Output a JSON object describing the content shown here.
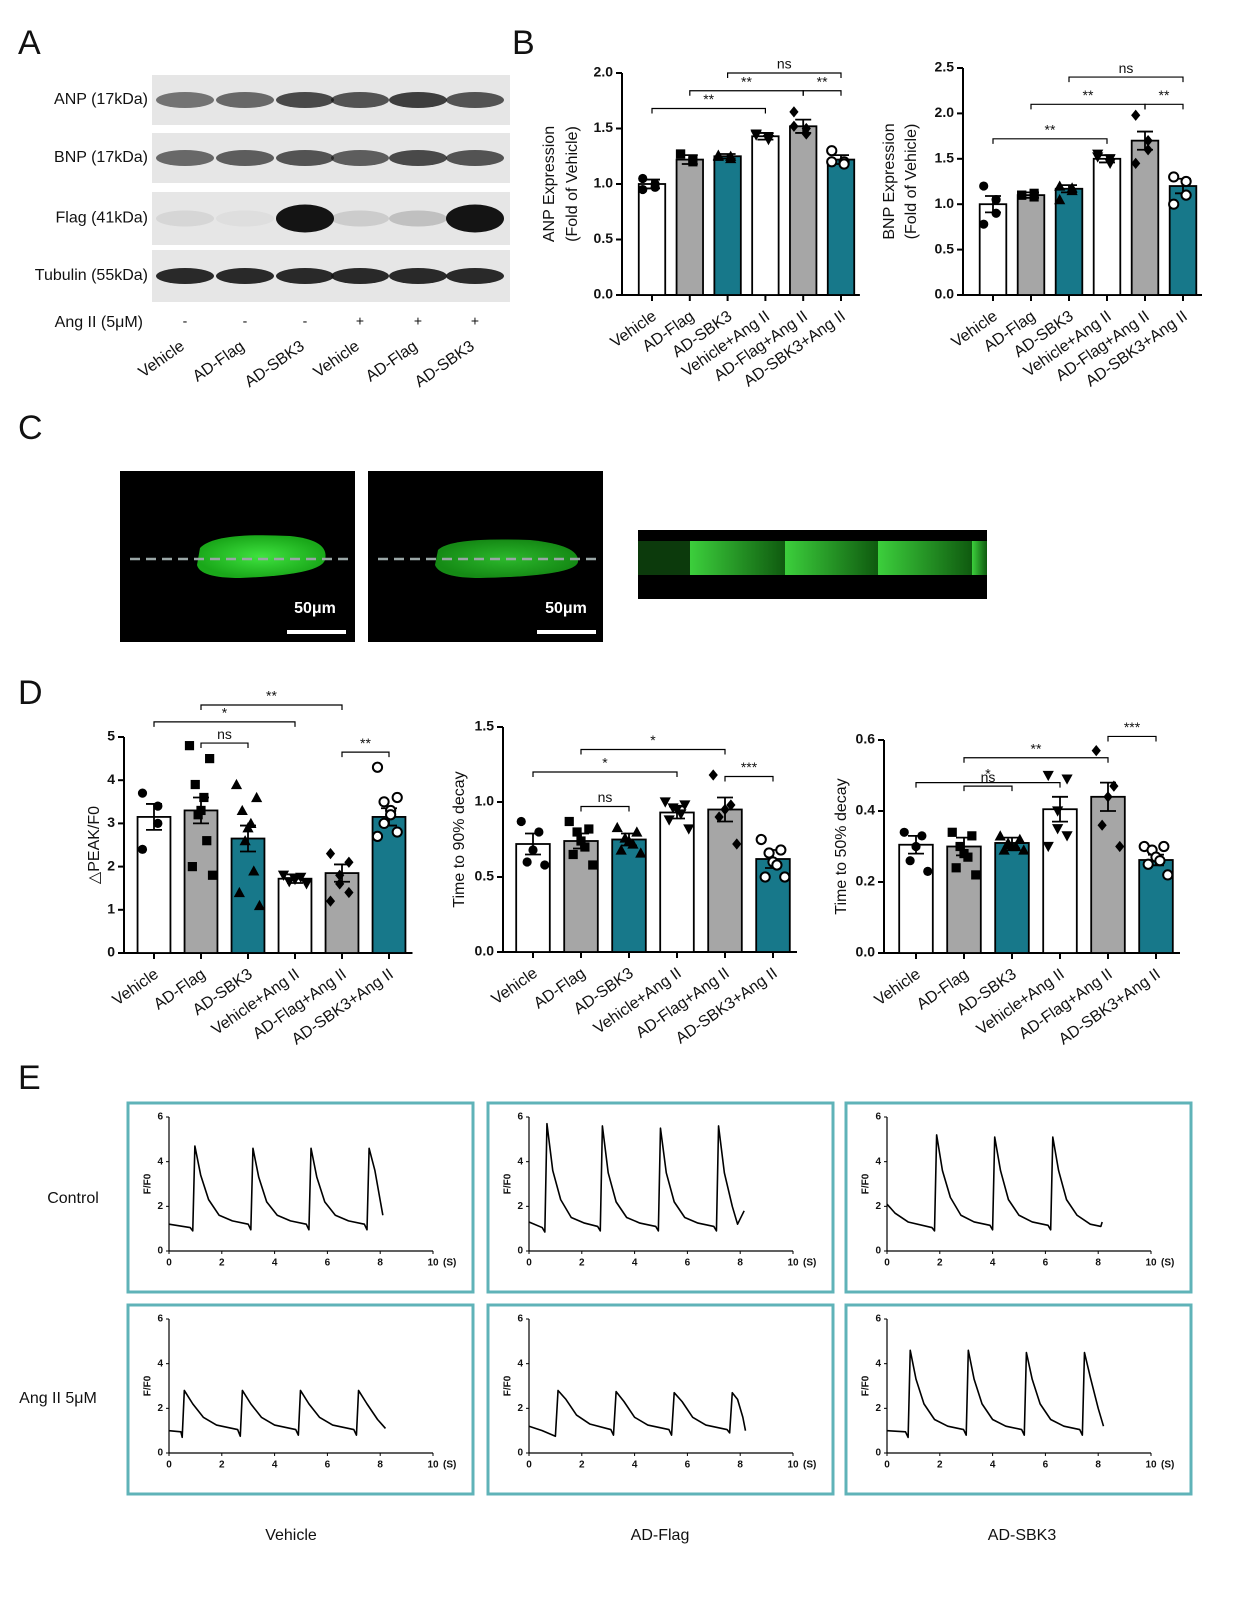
{
  "panels": [
    "A",
    "B",
    "C",
    "D",
    "E"
  ],
  "blot": {
    "proteins": [
      "ANP (17kDa)",
      "BNP (17kDa)",
      "Flag (41kDa)",
      "Tubulin (55kDa)"
    ],
    "treatment": "Ang II (5μM)",
    "signs": [
      "-",
      "-",
      "-",
      "+",
      "+",
      "+"
    ],
    "lanes": [
      "Vehicle",
      "AD-Flag",
      "AD-SBK3",
      "Vehicle",
      "AD-Flag",
      "AD-SBK3"
    ]
  },
  "images": {
    "scale_bars": [
      "50μm",
      "50μm"
    ]
  },
  "transients": {
    "rows": [
      "Control",
      "Ang II 5μM"
    ],
    "columns": [
      "Vehicle",
      "AD-Flag",
      "AD-SBK3"
    ]
  },
  "chart_data": [
    {
      "type": "bar",
      "ylabel": [
        "ANP Expression",
        "(Fold of Vehicle)"
      ],
      "categories": [
        "Vehicle",
        "AD-Flag",
        "AD-SBK3",
        "Vehicle+Ang II",
        "AD-Flag+Ang II",
        "AD-SBK3+Ang II"
      ],
      "values": [
        1.0,
        1.22,
        1.25,
        1.43,
        1.52,
        1.22
      ],
      "errors": [
        0.04,
        0.04,
        0.02,
        0.03,
        0.06,
        0.04
      ],
      "colors": [
        "#ffffff",
        "#a6a6a6",
        "#17788a",
        "#ffffff",
        "#a6a6a6",
        "#17788a"
      ],
      "markers": [
        "circle",
        "square",
        "triangle",
        "triangle-down",
        "diamond",
        "circle-open"
      ],
      "points": [
        [
          1.05,
          0.97,
          1.0,
          0.95
        ],
        [
          1.27,
          1.2,
          1.22,
          1.27
        ],
        [
          1.25,
          1.25,
          1.23,
          1.26
        ],
        [
          1.45,
          1.4,
          1.42,
          1.44
        ],
        [
          1.65,
          1.5,
          1.45,
          1.52
        ],
        [
          1.3,
          1.2,
          1.18,
          1.2
        ]
      ],
      "ylim": [
        0,
        2
      ],
      "yticks": [
        {
          "value": 0,
          "label": "0.0"
        },
        0.5,
        {
          "value": 1,
          "label": "1.0"
        },
        1.5,
        {
          "value": 2,
          "label": "2.0"
        }
      ],
      "brackets": [
        {
          "from": 0,
          "to": 3,
          "y": 1.68,
          "label": "**"
        },
        {
          "from": 1,
          "to": 4,
          "y": 1.84,
          "label": "**"
        },
        {
          "from": 2,
          "to": 5,
          "y": 2.0,
          "label": "ns"
        },
        {
          "from": 4,
          "to": 5,
          "y": 1.84,
          "label": "**"
        }
      ]
    },
    {
      "type": "bar",
      "ylabel": [
        "BNP Expression",
        "(Fold of Vehicle)"
      ],
      "categories": [
        "Vehicle",
        "AD-Flag",
        "AD-SBK3",
        "Vehicle+Ang II",
        "AD-Flag+Ang II",
        "AD-SBK3+Ang II"
      ],
      "values": [
        1.0,
        1.1,
        1.17,
        1.5,
        1.7,
        1.2
      ],
      "errors": [
        0.09,
        0.03,
        0.04,
        0.04,
        0.1,
        0.08
      ],
      "colors": [
        "#ffffff",
        "#a6a6a6",
        "#17788a",
        "#ffffff",
        "#a6a6a6",
        "#17788a"
      ],
      "markers": [
        "circle",
        "square",
        "triangle",
        "triangle-down",
        "diamond",
        "circle-open"
      ],
      "points": [
        [
          1.2,
          1.05,
          0.9,
          0.78
        ],
        [
          1.1,
          1.08,
          1.12,
          1.1
        ],
        [
          1.2,
          1.18,
          1.15,
          1.05
        ],
        [
          1.52,
          1.5,
          1.45,
          1.55
        ],
        [
          1.98,
          1.6,
          1.7,
          1.45
        ],
        [
          1.3,
          1.25,
          1.1,
          1.0
        ]
      ],
      "ylim": [
        0,
        2.5
      ],
      "yticks": [
        {
          "value": 0,
          "label": "0.0"
        },
        0.5,
        {
          "value": 1,
          "label": "1.0"
        },
        1.5,
        {
          "value": 2,
          "label": "2.0"
        },
        2.5
      ],
      "brackets": [
        {
          "from": 0,
          "to": 3,
          "y": 1.72,
          "label": "**"
        },
        {
          "from": 1,
          "to": 4,
          "y": 2.1,
          "label": "**"
        },
        {
          "from": 2,
          "to": 5,
          "y": 2.4,
          "label": "ns"
        },
        {
          "from": 4,
          "to": 5,
          "y": 2.1,
          "label": "**"
        }
      ]
    },
    {
      "type": "bar",
      "ylabel": [
        "△PEAK/F0"
      ],
      "categories": [
        "Vehicle",
        "AD-Flag",
        "AD-SBK3",
        "Vehicle+Ang II",
        "AD-Flag+Ang II",
        "AD-SBK3+Ang II"
      ],
      "values": [
        3.15,
        3.3,
        2.65,
        1.72,
        1.85,
        3.15
      ],
      "errors": [
        0.3,
        0.3,
        0.3,
        0.1,
        0.2,
        0.2
      ],
      "colors": [
        "#ffffff",
        "#a6a6a6",
        "#17788a",
        "#ffffff",
        "#a6a6a6",
        "#17788a"
      ],
      "markers": [
        "circle",
        "square",
        "triangle",
        "triangle-down",
        "diamond",
        "circle-open"
      ],
      "points": [
        [
          3.7,
          3.4,
          3.0,
          2.4
        ],
        [
          4.8,
          4.5,
          3.9,
          3.6,
          3.3,
          3.2,
          2.6,
          2.0,
          1.8
        ],
        [
          3.9,
          3.6,
          3.3,
          3.0,
          2.9,
          2.6,
          1.9,
          1.4,
          1.1
        ],
        [
          1.8,
          1.75,
          1.7,
          1.65,
          1.6
        ],
        [
          2.3,
          2.1,
          1.8,
          1.6,
          1.4,
          1.2
        ],
        [
          4.3,
          3.6,
          3.5,
          3.3,
          3.2,
          3.0,
          2.8,
          2.7
        ]
      ],
      "ylim": [
        0,
        5
      ],
      "yticks": [
        0,
        1,
        2,
        3,
        4,
        5
      ],
      "brackets": [
        {
          "from": 0,
          "to": 3,
          "y": 5.35,
          "label": "*"
        },
        {
          "from": 1,
          "to": 4,
          "y": 5.74,
          "label": "**"
        },
        {
          "from": 1,
          "to": 2,
          "y": 4.86,
          "label": "ns"
        },
        {
          "from": 4,
          "to": 5,
          "y": 4.65,
          "label": "**"
        }
      ]
    },
    {
      "type": "bar",
      "ylabel": [
        "Time to 90% decay"
      ],
      "categories": [
        "Vehicle",
        "AD-Flag",
        "AD-SBK3",
        "Vehicle+Ang II",
        "AD-Flag+Ang II",
        "AD-SBK3+Ang II"
      ],
      "values": [
        0.72,
        0.74,
        0.75,
        0.93,
        0.95,
        0.62
      ],
      "errors": [
        0.07,
        0.05,
        0.04,
        0.04,
        0.08,
        0.06
      ],
      "colors": [
        "#ffffff",
        "#a6a6a6",
        "#17788a",
        "#ffffff",
        "#a6a6a6",
        "#17788a"
      ],
      "markers": [
        "circle",
        "square",
        "triangle",
        "triangle-down",
        "diamond",
        "circle-open"
      ],
      "points": [
        [
          0.87,
          0.8,
          0.68,
          0.6,
          0.58
        ],
        [
          0.87,
          0.82,
          0.8,
          0.74,
          0.7,
          0.65,
          0.58
        ],
        [
          0.83,
          0.8,
          0.76,
          0.74,
          0.72,
          0.68,
          0.66
        ],
        [
          1.0,
          0.98,
          0.96,
          0.95,
          0.92,
          0.88,
          0.82
        ],
        [
          1.18,
          0.98,
          0.95,
          0.9,
          0.72
        ],
        [
          0.75,
          0.68,
          0.66,
          0.6,
          0.58,
          0.5,
          0.5
        ]
      ],
      "ylim": [
        0,
        1.5
      ],
      "yticks": [
        {
          "value": 0,
          "label": "0.0"
        },
        0.5,
        {
          "value": 1,
          "label": "1.0"
        },
        1.5
      ],
      "brackets": [
        {
          "from": 0,
          "to": 3,
          "y": 1.2,
          "label": "*"
        },
        {
          "from": 1,
          "to": 4,
          "y": 1.35,
          "label": "*"
        },
        {
          "from": 1,
          "to": 2,
          "y": 0.97,
          "label": "ns"
        },
        {
          "from": 4,
          "to": 5,
          "y": 1.17,
          "label": "***"
        }
      ]
    },
    {
      "type": "bar",
      "ylabel": [
        "Time to 50% decay"
      ],
      "categories": [
        "Vehicle",
        "AD-Flag",
        "AD-SBK3",
        "Vehicle+Ang II",
        "AD-Flag+Ang II",
        "AD-SBK3+Ang II"
      ],
      "values": [
        0.305,
        0.3,
        0.31,
        0.405,
        0.44,
        0.262
      ],
      "errors": [
        0.025,
        0.025,
        0.015,
        0.035,
        0.04,
        0.015
      ],
      "colors": [
        "#ffffff",
        "#a6a6a6",
        "#17788a",
        "#ffffff",
        "#a6a6a6",
        "#17788a"
      ],
      "markers": [
        "circle",
        "square",
        "triangle",
        "triangle-down",
        "diamond",
        "circle-open"
      ],
      "points": [
        [
          0.34,
          0.33,
          0.3,
          0.26,
          0.23
        ],
        [
          0.34,
          0.33,
          0.3,
          0.28,
          0.27,
          0.24,
          0.22
        ],
        [
          0.33,
          0.32,
          0.31,
          0.3,
          0.3,
          0.29,
          0.29
        ],
        [
          0.5,
          0.49,
          0.4,
          0.35,
          0.33,
          0.3
        ],
        [
          0.57,
          0.47,
          0.44,
          0.36,
          0.3
        ],
        [
          0.3,
          0.3,
          0.29,
          0.27,
          0.26,
          0.25,
          0.22
        ]
      ],
      "ylim": [
        0,
        0.6
      ],
      "yticks": [
        {
          "value": 0,
          "label": "0.0"
        },
        0.2,
        0.4,
        0.6
      ],
      "brackets": [
        {
          "from": 0,
          "to": 3,
          "y": 0.48,
          "label": "*"
        },
        {
          "from": 1,
          "to": 4,
          "y": 0.55,
          "label": "**"
        },
        {
          "from": 1,
          "to": 2,
          "y": 0.47,
          "label": "ns"
        },
        {
          "from": 4,
          "to": 5,
          "y": 0.61,
          "label": "***"
        }
      ]
    },
    {
      "type": "line",
      "ylabel": "F/F0",
      "xlabel": "(S)",
      "color": "#000000",
      "xlim": [
        0,
        10
      ],
      "xticks": [
        0,
        2,
        4,
        6,
        8,
        10
      ],
      "ylim": [
        0,
        6
      ],
      "yticks": [
        0,
        2,
        4,
        6
      ],
      "x": [
        0,
        0.8,
        0.9,
        0.98,
        1.2,
        1.5,
        1.9,
        2.4,
        3.0,
        3.1,
        3.18,
        3.4,
        3.7,
        4.1,
        4.6,
        5.2,
        5.3,
        5.38,
        5.6,
        5.9,
        6.3,
        6.8,
        7.4,
        7.5,
        7.58,
        7.8,
        8.1
      ],
      "values": [
        1.2,
        1.05,
        0.9,
        4.7,
        3.4,
        2.3,
        1.6,
        1.35,
        1.2,
        0.95,
        4.6,
        3.3,
        2.2,
        1.6,
        1.35,
        1.2,
        0.95,
        4.6,
        3.3,
        2.2,
        1.6,
        1.35,
        1.2,
        0.95,
        4.6,
        3.6,
        1.6
      ]
    },
    {
      "type": "line",
      "ylabel": "F/F0",
      "xlabel": "(S)",
      "color": "#000000",
      "xlim": [
        0,
        10
      ],
      "xticks": [
        0,
        2,
        4,
        6,
        8,
        10
      ],
      "ylim": [
        0,
        6
      ],
      "yticks": [
        0,
        2,
        4,
        6
      ],
      "x": [
        0,
        0.5,
        0.6,
        0.68,
        0.9,
        1.2,
        1.6,
        2.1,
        2.6,
        2.7,
        2.78,
        3.0,
        3.3,
        3.7,
        4.2,
        4.8,
        4.9,
        4.98,
        5.2,
        5.5,
        5.9,
        6.4,
        7.0,
        7.1,
        7.18,
        7.4,
        7.7,
        7.9,
        8.15
      ],
      "values": [
        1.3,
        1.05,
        0.85,
        5.7,
        3.6,
        2.3,
        1.5,
        1.25,
        1.1,
        0.9,
        5.6,
        3.5,
        2.2,
        1.5,
        1.25,
        1.1,
        0.9,
        5.5,
        3.5,
        2.2,
        1.5,
        1.25,
        1.1,
        0.9,
        5.6,
        3.5,
        2.0,
        1.2,
        1.8
      ]
    },
    {
      "type": "line",
      "ylabel": "F/F0",
      "xlabel": "(S)",
      "color": "#000000",
      "xlim": [
        0,
        10
      ],
      "xticks": [
        0,
        2,
        4,
        6,
        8,
        10
      ],
      "ylim": [
        0,
        6
      ],
      "yticks": [
        0,
        2,
        4,
        6
      ],
      "x": [
        0,
        0.3,
        0.8,
        1.7,
        1.8,
        1.88,
        2.1,
        2.4,
        2.8,
        3.3,
        3.9,
        4.0,
        4.08,
        4.3,
        4.6,
        5.0,
        5.5,
        6.1,
        6.2,
        6.28,
        6.5,
        6.8,
        7.2,
        7.7,
        8.1,
        8.15
      ],
      "values": [
        2.1,
        1.7,
        1.3,
        1.05,
        0.9,
        5.2,
        3.6,
        2.4,
        1.6,
        1.3,
        1.15,
        0.95,
        5.1,
        3.6,
        2.3,
        1.6,
        1.3,
        1.15,
        0.95,
        5.1,
        3.6,
        2.3,
        1.6,
        1.2,
        1.1,
        1.3
      ]
    },
    {
      "type": "line",
      "ylabel": "F/F0",
      "xlabel": "(S)",
      "color": "#000000",
      "xlim": [
        0,
        10
      ],
      "xticks": [
        0,
        2,
        4,
        6,
        8,
        10
      ],
      "ylim": [
        0,
        6
      ],
      "yticks": [
        0,
        2,
        4,
        6
      ],
      "x": [
        0,
        0.45,
        0.5,
        0.58,
        0.9,
        1.3,
        1.8,
        2.6,
        2.7,
        2.78,
        3.1,
        3.5,
        4.0,
        4.8,
        4.9,
        4.98,
        5.3,
        5.7,
        6.2,
        7.0,
        7.1,
        7.18,
        7.5,
        7.9,
        8.2
      ],
      "values": [
        1.0,
        0.95,
        0.7,
        2.8,
        2.2,
        1.6,
        1.25,
        1.05,
        0.75,
        2.8,
        2.2,
        1.6,
        1.25,
        1.05,
        0.8,
        2.8,
        2.2,
        1.6,
        1.25,
        1.05,
        0.8,
        2.8,
        2.2,
        1.5,
        1.1
      ]
    },
    {
      "type": "line",
      "ylabel": "F/F0",
      "xlabel": "(S)",
      "color": "#000000",
      "xlim": [
        0,
        10
      ],
      "xticks": [
        0,
        2,
        4,
        6,
        8,
        10
      ],
      "ylim": [
        0,
        6
      ],
      "yticks": [
        0,
        2,
        4,
        6
      ],
      "x": [
        0,
        0.5,
        1.0,
        1.1,
        1.4,
        1.8,
        2.3,
        3.1,
        3.2,
        3.3,
        3.6,
        4.0,
        4.5,
        5.3,
        5.4,
        5.5,
        5.8,
        6.2,
        6.7,
        7.5,
        7.6,
        7.7,
        7.9,
        8.1,
        8.2
      ],
      "values": [
        1.2,
        1.0,
        0.75,
        2.8,
        2.4,
        1.7,
        1.3,
        1.05,
        0.8,
        2.75,
        2.3,
        1.6,
        1.25,
        1.05,
        0.8,
        2.7,
        2.3,
        1.6,
        1.25,
        1.05,
        0.9,
        2.7,
        2.4,
        1.6,
        1.0
      ]
    },
    {
      "type": "line",
      "ylabel": "F/F0",
      "xlabel": "(S)",
      "color": "#000000",
      "xlim": [
        0,
        10
      ],
      "xticks": [
        0,
        2,
        4,
        6,
        8,
        10
      ],
      "ylim": [
        0,
        6
      ],
      "yticks": [
        0,
        2,
        4,
        6
      ],
      "x": [
        0,
        0.7,
        0.8,
        0.88,
        1.1,
        1.4,
        1.8,
        2.3,
        2.9,
        3.0,
        3.08,
        3.3,
        3.6,
        4.0,
        4.5,
        5.1,
        5.2,
        5.28,
        5.5,
        5.8,
        6.2,
        6.7,
        7.3,
        7.4,
        7.48,
        7.7,
        8.0,
        8.2
      ],
      "values": [
        1.0,
        0.95,
        0.7,
        4.6,
        3.3,
        2.2,
        1.5,
        1.2,
        1.05,
        0.8,
        4.6,
        3.3,
        2.2,
        1.5,
        1.2,
        1.05,
        0.8,
        4.5,
        3.3,
        2.2,
        1.5,
        1.2,
        1.05,
        0.8,
        4.5,
        3.4,
        2.0,
        1.2
      ]
    }
  ]
}
